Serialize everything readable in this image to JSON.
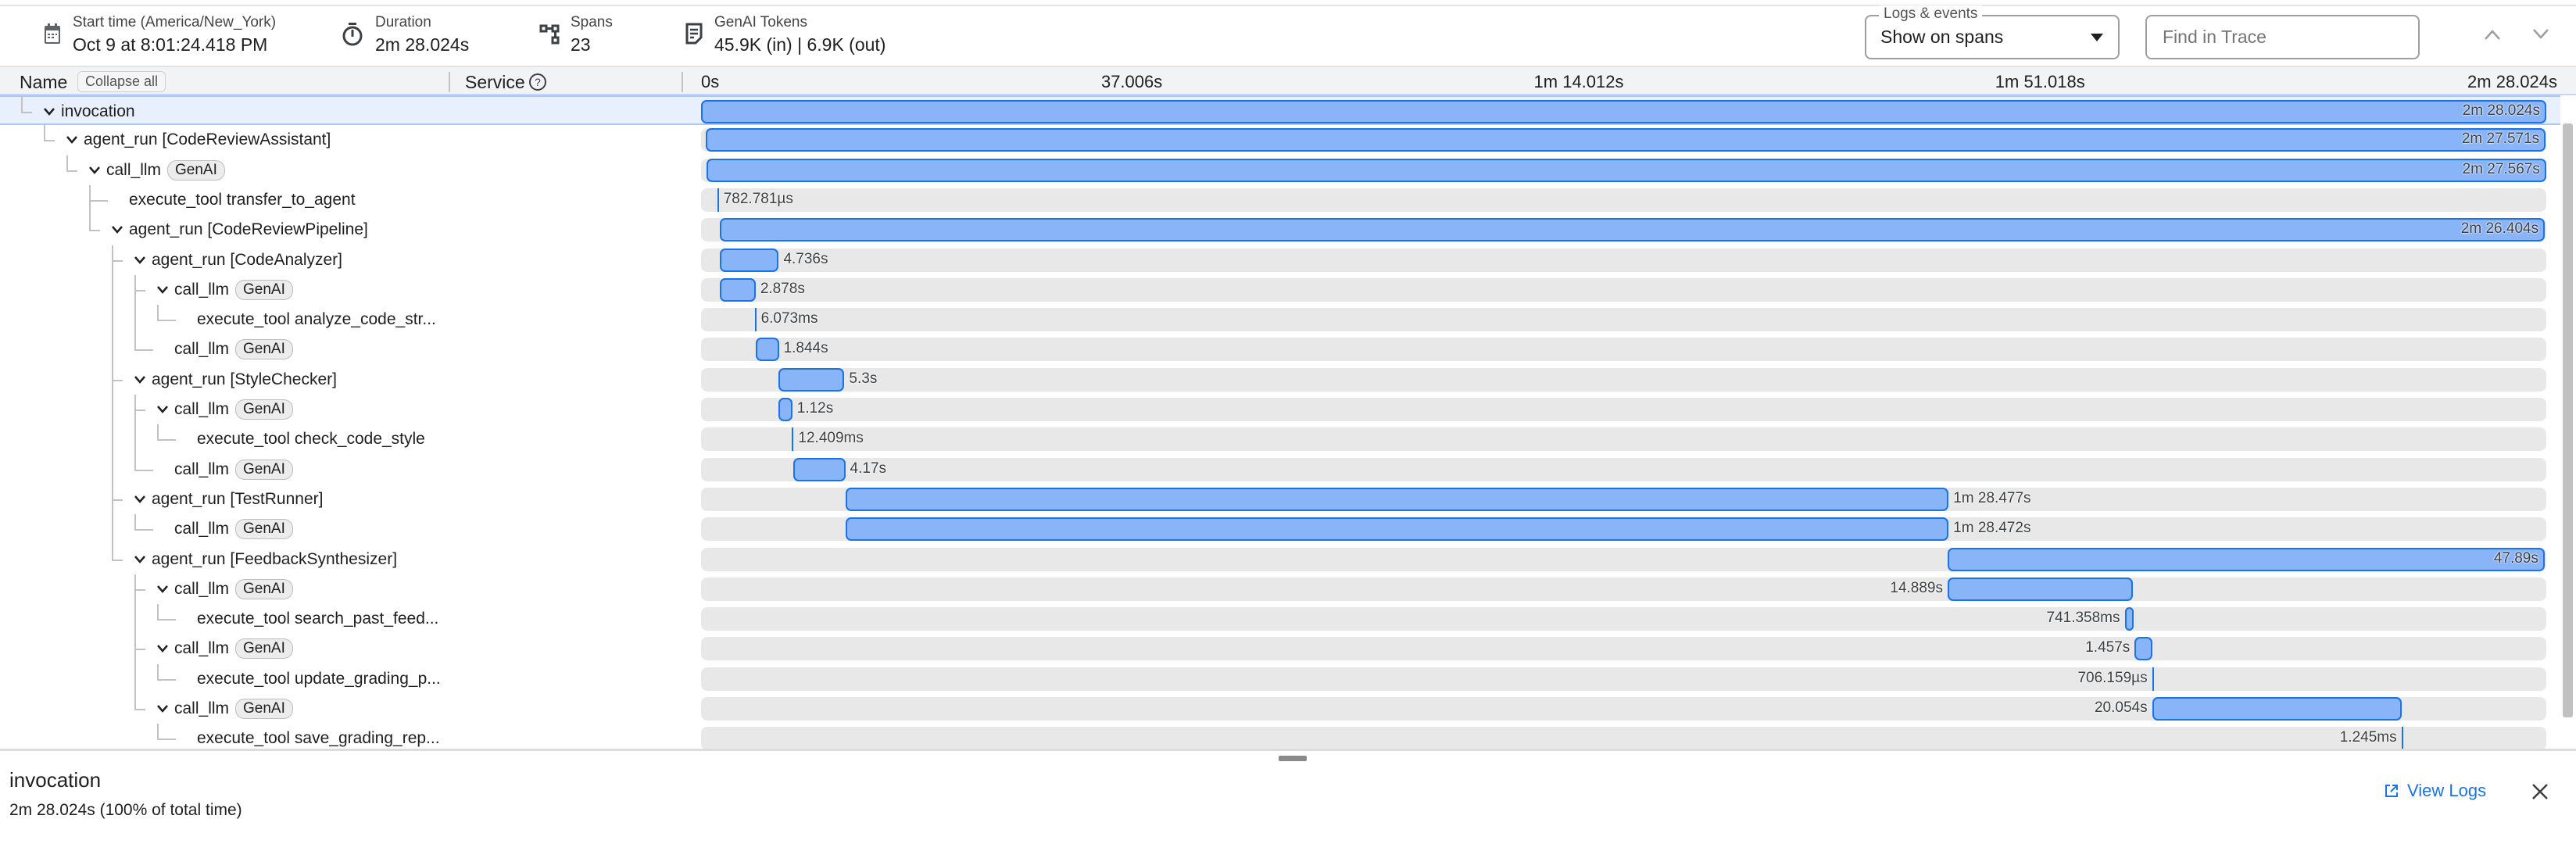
{
  "header": {
    "stats": [
      {
        "icon": "calendar-icon",
        "label": "Start time (America/New_York)",
        "value": "Oct 9 at 8:01:24.418 PM"
      },
      {
        "icon": "stopwatch-icon",
        "label": "Duration",
        "value": "2m 28.024s"
      },
      {
        "icon": "spans-tree-icon",
        "label": "Spans",
        "value": "23"
      },
      {
        "icon": "document-icon",
        "label": "GenAI Tokens",
        "value": "45.9K (in) | 6.9K (out)"
      }
    ],
    "logs_events": {
      "legend": "Logs & events",
      "selected": "Show on spans"
    },
    "find": {
      "placeholder": "Find in Trace"
    }
  },
  "columns": {
    "name": "Name",
    "collapse_all": "Collapse all",
    "service": "Service"
  },
  "timeline": {
    "total_s": 148.024,
    "ticks": [
      "0s",
      "37.006s",
      "1m 14.012s",
      "1m 51.018s",
      "2m 28.024s"
    ]
  },
  "colors": {
    "bar": "#8ab4f8",
    "bar_border": "#1a73e8",
    "selected_row": "#e8f0fe",
    "link": "#1a73e8"
  },
  "spans": [
    {
      "name": "invocation",
      "depth": 0,
      "expandable": true,
      "start": 0,
      "dur": 148.024,
      "label": "2m 28.024s",
      "selected": true
    },
    {
      "name": "agent_run [CodeReviewAssistant]",
      "depth": 1,
      "expandable": true,
      "start": 0.4,
      "dur": 147.571,
      "label": "2m 27.571s"
    },
    {
      "name": "call_llm",
      "badge": "GenAI",
      "depth": 2,
      "expandable": true,
      "start": 0.45,
      "dur": 147.567,
      "label": "2m 27.567s"
    },
    {
      "name": "execute_tool transfer_to_agent",
      "depth": 3,
      "expandable": false,
      "start": 1.3,
      "dur": 0.000783,
      "label": "782.781µs"
    },
    {
      "name": "agent_run [CodeReviewPipeline]",
      "depth": 3,
      "expandable": true,
      "start": 1.5,
      "dur": 146.404,
      "label": "2m 26.404s"
    },
    {
      "name": "agent_run [CodeAnalyzer]",
      "depth": 4,
      "expandable": true,
      "start": 1.5,
      "dur": 4.736,
      "label": "4.736s"
    },
    {
      "name": "call_llm",
      "badge": "GenAI",
      "depth": 5,
      "expandable": true,
      "start": 1.5,
      "dur": 2.878,
      "label": "2.878s"
    },
    {
      "name": "execute_tool analyze_code_str...",
      "depth": 6,
      "expandable": false,
      "start": 4.3,
      "dur": 0.006073,
      "label": "6.073ms"
    },
    {
      "name": "call_llm",
      "badge": "GenAI",
      "depth": 5,
      "expandable": false,
      "start": 4.4,
      "dur": 1.844,
      "label": "1.844s"
    },
    {
      "name": "agent_run [StyleChecker]",
      "depth": 4,
      "expandable": true,
      "start": 6.2,
      "dur": 5.3,
      "label": "5.3s"
    },
    {
      "name": "call_llm",
      "badge": "GenAI",
      "depth": 5,
      "expandable": true,
      "start": 6.2,
      "dur": 1.12,
      "label": "1.12s"
    },
    {
      "name": "execute_tool check_code_style",
      "depth": 6,
      "expandable": false,
      "start": 7.3,
      "dur": 0.012409,
      "label": "12.409ms"
    },
    {
      "name": "call_llm",
      "badge": "GenAI",
      "depth": 5,
      "expandable": false,
      "start": 7.4,
      "dur": 4.17,
      "label": "4.17s"
    },
    {
      "name": "agent_run [TestRunner]",
      "depth": 4,
      "expandable": true,
      "start": 11.6,
      "dur": 88.477,
      "label": "1m 28.477s"
    },
    {
      "name": "call_llm",
      "badge": "GenAI",
      "depth": 5,
      "expandable": false,
      "start": 11.6,
      "dur": 88.472,
      "label": "1m 28.472s"
    },
    {
      "name": "agent_run [FeedbackSynthesizer]",
      "depth": 4,
      "expandable": true,
      "start": 100.0,
      "dur": 47.89,
      "label": "47.89s"
    },
    {
      "name": "call_llm",
      "badge": "GenAI",
      "depth": 5,
      "expandable": true,
      "start": 100.0,
      "dur": 14.889,
      "label": "14.889s"
    },
    {
      "name": "execute_tool search_past_feed...",
      "depth": 6,
      "expandable": false,
      "start": 114.2,
      "dur": 0.741,
      "label": "741.358ms"
    },
    {
      "name": "call_llm",
      "badge": "GenAI",
      "depth": 5,
      "expandable": true,
      "start": 115.0,
      "dur": 1.457,
      "label": "1.457s"
    },
    {
      "name": "execute_tool update_grading_p...",
      "depth": 6,
      "expandable": false,
      "start": 116.4,
      "dur": 0.000706,
      "label": "706.159µs"
    },
    {
      "name": "call_llm",
      "badge": "GenAI",
      "depth": 5,
      "expandable": true,
      "start": 116.4,
      "dur": 20.054,
      "label": "20.054s"
    },
    {
      "name": "execute_tool save_grading_rep...",
      "depth": 6,
      "expandable": false,
      "start": 136.4,
      "dur": 0.001245,
      "label": "1.245ms"
    }
  ],
  "details": {
    "title": "invocation",
    "summary": "2m 28.024s (100% of total time)",
    "view_logs": "View Logs"
  }
}
